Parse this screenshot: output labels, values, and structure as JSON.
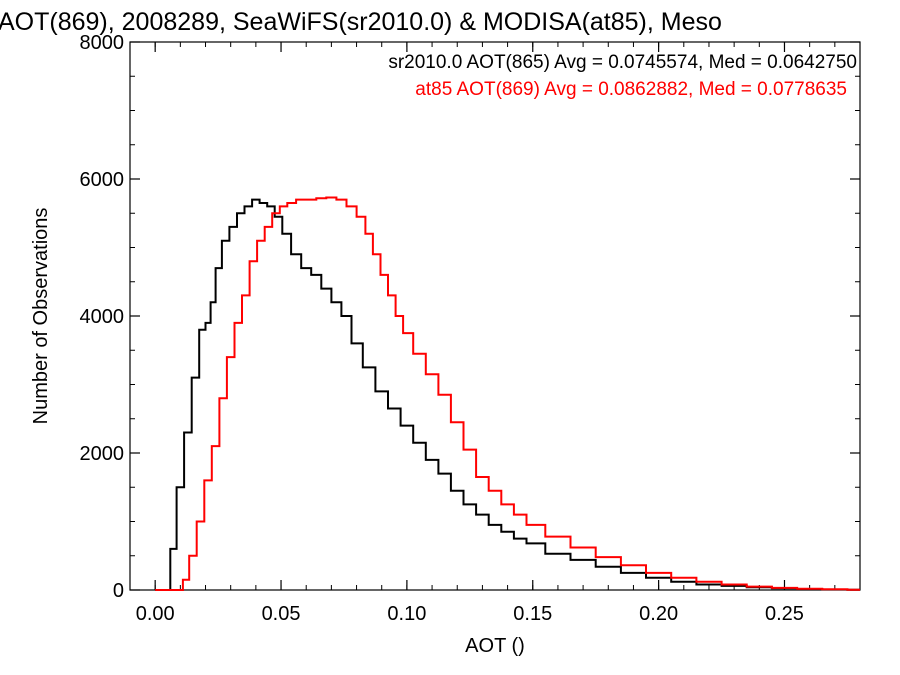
{
  "chart_data": {
    "type": "line",
    "title": "AOT(869), 2008289, SeaWiFS(sr2010.0) & MODISA(at85), Meso",
    "xlabel": "AOT ()",
    "ylabel": "Number of Observations",
    "xlim": [
      -0.01,
      0.28
    ],
    "ylim": [
      0,
      8000
    ],
    "x_ticks": [
      0.0,
      0.05,
      0.1,
      0.15,
      0.2,
      0.25
    ],
    "x_tick_labels": [
      "0.00",
      "0.05",
      "0.10",
      "0.15",
      "0.20",
      "0.25"
    ],
    "y_ticks": [
      0,
      2000,
      4000,
      6000,
      8000
    ],
    "y_tick_labels": [
      "0",
      "2000",
      "4000",
      "6000",
      "8000"
    ],
    "grid": false,
    "legend_position": "top-right",
    "series": [
      {
        "name": "sr2010.0 AOT(865) Avg = 0.0745574, Med = 0.0642750",
        "color": "#000000",
        "x": [
          0.0,
          0.005,
          0.007,
          0.01,
          0.013,
          0.016,
          0.019,
          0.021,
          0.023,
          0.025,
          0.028,
          0.031,
          0.034,
          0.037,
          0.04,
          0.043,
          0.046,
          0.049,
          0.052,
          0.056,
          0.06,
          0.064,
          0.068,
          0.072,
          0.076,
          0.08,
          0.085,
          0.09,
          0.095,
          0.1,
          0.105,
          0.11,
          0.115,
          0.12,
          0.125,
          0.13,
          0.135,
          0.14,
          0.145,
          0.15,
          0.16,
          0.17,
          0.18,
          0.19,
          0.2,
          0.21,
          0.22,
          0.23,
          0.24,
          0.25,
          0.26,
          0.27,
          0.28
        ],
        "values": [
          0,
          0,
          600,
          1500,
          2300,
          3100,
          3800,
          3900,
          4200,
          4700,
          5100,
          5300,
          5500,
          5600,
          5700,
          5650,
          5600,
          5450,
          5200,
          4900,
          4700,
          4600,
          4400,
          4200,
          4000,
          3600,
          3250,
          2900,
          2650,
          2400,
          2150,
          1900,
          1700,
          1450,
          1250,
          1100,
          950,
          850,
          750,
          680,
          530,
          440,
          340,
          250,
          180,
          120,
          80,
          60,
          40,
          25,
          15,
          8,
          5
        ]
      },
      {
        "name": "at85 AOT(869) Avg = 0.0862882, Med = 0.0778635",
        "color": "#ff0000",
        "x": [
          0.0,
          0.01,
          0.012,
          0.015,
          0.018,
          0.021,
          0.024,
          0.027,
          0.03,
          0.033,
          0.036,
          0.039,
          0.042,
          0.045,
          0.048,
          0.051,
          0.054,
          0.058,
          0.062,
          0.066,
          0.07,
          0.074,
          0.078,
          0.082,
          0.085,
          0.088,
          0.091,
          0.094,
          0.097,
          0.1,
          0.105,
          0.11,
          0.115,
          0.12,
          0.125,
          0.13,
          0.135,
          0.14,
          0.145,
          0.15,
          0.16,
          0.17,
          0.18,
          0.19,
          0.2,
          0.21,
          0.22,
          0.23,
          0.24,
          0.25,
          0.26,
          0.27,
          0.28
        ],
        "values": [
          0,
          0,
          150,
          500,
          1000,
          1600,
          2100,
          2800,
          3400,
          3900,
          4300,
          4800,
          5100,
          5300,
          5500,
          5600,
          5650,
          5700,
          5700,
          5720,
          5730,
          5700,
          5600,
          5450,
          5200,
          4900,
          4600,
          4300,
          4000,
          3750,
          3450,
          3150,
          2850,
          2450,
          2050,
          1650,
          1450,
          1250,
          1100,
          950,
          780,
          620,
          480,
          360,
          250,
          180,
          120,
          80,
          50,
          30,
          18,
          10,
          5
        ]
      }
    ]
  }
}
